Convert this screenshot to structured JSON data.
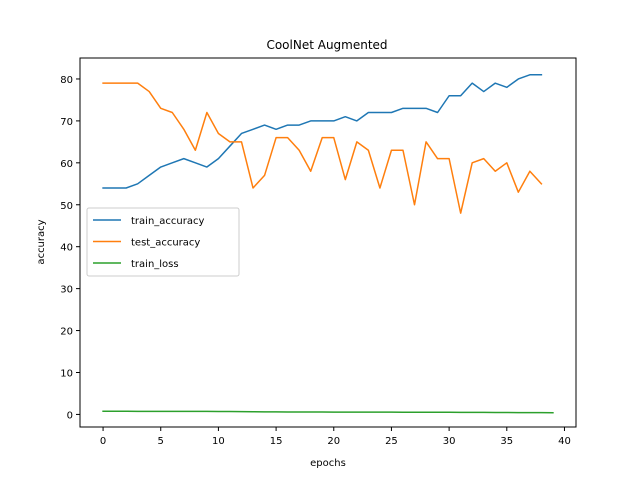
{
  "chart_data": {
    "type": "line",
    "title": "CoolNet Augmented",
    "xlabel": "epochs",
    "ylabel": "accuracy",
    "xlim": [
      -2,
      41
    ],
    "ylim": [
      -3,
      85
    ],
    "xticks": [
      0,
      5,
      10,
      15,
      20,
      25,
      30,
      35,
      40
    ],
    "yticks": [
      0,
      10,
      20,
      30,
      40,
      50,
      60,
      70,
      80
    ],
    "grid": false,
    "legend_position": "center-left",
    "series": [
      {
        "name": "train_accuracy",
        "color": "#1f77b4",
        "x": [
          0,
          1,
          2,
          3,
          4,
          5,
          6,
          7,
          8,
          9,
          10,
          11,
          12,
          13,
          14,
          15,
          16,
          17,
          18,
          19,
          20,
          21,
          22,
          23,
          24,
          25,
          26,
          27,
          28,
          29,
          30,
          31,
          32,
          33,
          34,
          35,
          36,
          37,
          38
        ],
        "values": [
          54,
          54,
          54,
          55,
          57,
          59,
          60,
          61,
          60,
          59,
          61,
          64,
          67,
          68,
          69,
          68,
          69,
          69,
          70,
          70,
          70,
          71,
          70,
          72,
          72,
          72,
          73,
          73,
          73,
          72,
          76,
          76,
          79,
          77,
          79,
          78,
          80,
          81,
          81
        ]
      },
      {
        "name": "test_accuracy",
        "color": "#ff7f0e",
        "x": [
          0,
          1,
          2,
          3,
          4,
          5,
          6,
          7,
          8,
          9,
          10,
          11,
          12,
          13,
          14,
          15,
          16,
          17,
          18,
          19,
          20,
          21,
          22,
          23,
          24,
          25,
          26,
          27,
          28,
          29,
          30,
          31,
          32,
          33,
          34,
          35,
          36,
          37,
          38
        ],
        "values": [
          79,
          79,
          79,
          79,
          77,
          73,
          72,
          68,
          63,
          72,
          67,
          65,
          65,
          54,
          57,
          66,
          66,
          63,
          58,
          66,
          66,
          56,
          65,
          63,
          54,
          63,
          63,
          50,
          65,
          61,
          61,
          48,
          60,
          61,
          58,
          60,
          53,
          58,
          55
        ]
      },
      {
        "name": "train_loss",
        "color": "#2ca02c",
        "x": [
          0,
          1,
          2,
          3,
          4,
          5,
          6,
          7,
          8,
          9,
          10,
          11,
          12,
          13,
          14,
          15,
          16,
          17,
          18,
          19,
          20,
          21,
          22,
          23,
          24,
          25,
          26,
          27,
          28,
          29,
          30,
          31,
          32,
          33,
          34,
          35,
          36,
          37,
          38,
          39
        ],
        "values": [
          0.75,
          0.75,
          0.75,
          0.74,
          0.74,
          0.74,
          0.73,
          0.73,
          0.72,
          0.72,
          0.71,
          0.7,
          0.67,
          0.64,
          0.62,
          0.6,
          0.59,
          0.58,
          0.58,
          0.57,
          0.56,
          0.56,
          0.55,
          0.55,
          0.54,
          0.54,
          0.53,
          0.53,
          0.52,
          0.52,
          0.51,
          0.5,
          0.49,
          0.48,
          0.47,
          0.46,
          0.44,
          0.43,
          0.42,
          0.41
        ]
      }
    ]
  }
}
